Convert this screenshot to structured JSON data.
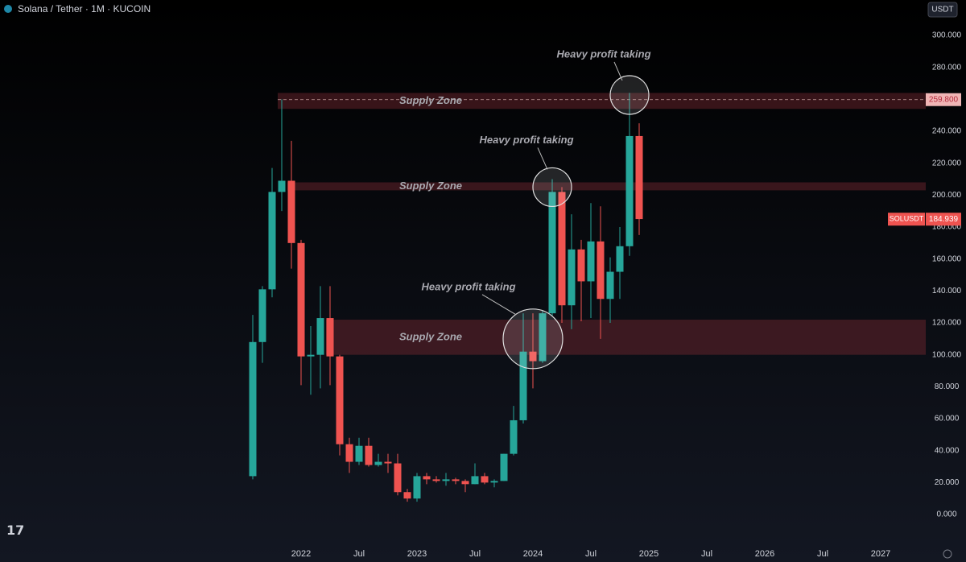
{
  "header": {
    "title": "Solana / Tether · 1M · KUCOIN",
    "currency": "USDT"
  },
  "chart_data": {
    "type": "candlestick",
    "x": [
      "2021-08",
      "2021-09",
      "2021-10",
      "2021-11",
      "2021-12",
      "2022-01",
      "2022-02",
      "2022-03",
      "2022-04",
      "2022-05",
      "2022-06",
      "2022-07",
      "2022-08",
      "2022-09",
      "2022-10",
      "2022-11",
      "2022-12",
      "2023-01",
      "2023-02",
      "2023-03",
      "2023-04",
      "2023-05",
      "2023-06",
      "2023-07",
      "2023-08",
      "2023-09",
      "2023-10",
      "2023-11",
      "2023-12",
      "2024-01",
      "2024-02",
      "2024-03",
      "2024-04",
      "2024-05",
      "2024-06",
      "2024-07",
      "2024-08",
      "2024-09",
      "2024-10",
      "2024-11",
      "2024-12"
    ],
    "open": [
      24,
      108,
      141,
      202,
      209,
      170,
      99,
      100,
      123,
      99,
      44,
      33,
      43,
      31,
      33,
      32,
      14,
      10,
      24,
      22,
      21,
      22,
      21,
      19,
      24,
      20,
      21,
      38,
      59,
      102,
      96,
      126,
      202,
      131,
      166,
      146,
      171,
      135,
      152,
      168,
      237
    ],
    "high": [
      125,
      143,
      217,
      260,
      234,
      172,
      118,
      143,
      143,
      100,
      48,
      48,
      48,
      38,
      38,
      38,
      16,
      26,
      26,
      24,
      26,
      23,
      22,
      32,
      26,
      22,
      38,
      68,
      126,
      126,
      128,
      210,
      205,
      188,
      172,
      195,
      193,
      161,
      180,
      264,
      245
    ],
    "low": [
      22,
      95,
      136,
      190,
      154,
      81,
      75,
      79,
      81,
      37,
      26,
      31,
      30,
      30,
      26,
      12,
      8,
      8,
      19,
      20,
      18,
      19,
      14,
      19,
      19,
      17,
      21,
      37,
      57,
      79,
      95,
      124,
      120,
      116,
      121,
      123,
      110,
      120,
      135,
      162,
      175
    ],
    "close": [
      108,
      141,
      202,
      209,
      170,
      99,
      100,
      123,
      99,
      44,
      33,
      43,
      31,
      33,
      32,
      14,
      10,
      24,
      22,
      21,
      22,
      21,
      19,
      24,
      20,
      21,
      38,
      59,
      102,
      96,
      126,
      202,
      131,
      166,
      146,
      171,
      135,
      152,
      168,
      237,
      185
    ],
    "up_color": "#26a69a",
    "down_color": "#ef5350",
    "ylim": [
      0,
      300
    ],
    "yticks": [
      {
        "value": 0,
        "label": "0.000"
      },
      {
        "value": 20,
        "label": "20.000"
      },
      {
        "value": 40,
        "label": "40.000"
      },
      {
        "value": 60,
        "label": "60.000"
      },
      {
        "value": 80,
        "label": "80.000"
      },
      {
        "value": 100,
        "label": "100.000"
      },
      {
        "value": 120,
        "label": "120.000"
      },
      {
        "value": 140,
        "label": "140.000"
      },
      {
        "value": 160,
        "label": "160.000"
      },
      {
        "value": 180,
        "label": "180.000"
      },
      {
        "value": 200,
        "label": "200.000"
      },
      {
        "value": 220,
        "label": "220.000"
      },
      {
        "value": 240,
        "label": "240.000"
      },
      {
        "value": 260,
        "label": "260.000"
      },
      {
        "value": 280,
        "label": "280.000"
      },
      {
        "value": 300,
        "label": "300.000"
      }
    ],
    "xticks": [
      {
        "value": "2022-01",
        "label": "2022"
      },
      {
        "value": "2022-07",
        "label": "Jul"
      },
      {
        "value": "2023-01",
        "label": "2023"
      },
      {
        "value": "2023-07",
        "label": "Jul"
      },
      {
        "value": "2024-01",
        "label": "2024"
      },
      {
        "value": "2024-07",
        "label": "Jul"
      },
      {
        "value": "2025-01",
        "label": "2025"
      },
      {
        "value": "2025-07",
        "label": "Jul"
      },
      {
        "value": "2026-01",
        "label": "2026"
      },
      {
        "value": "2026-07",
        "label": "Jul"
      },
      {
        "value": "2027-01",
        "label": "2027"
      }
    ],
    "zones": [
      {
        "label": "Supply Zone",
        "range": [
          254,
          264
        ],
        "start": "2021-11"
      },
      {
        "label": "Supply Zone",
        "range": [
          203,
          208
        ],
        "start": "2021-12"
      },
      {
        "label": "Supply Zone",
        "range": [
          100,
          122
        ],
        "start": "2022-04"
      }
    ],
    "high_line": {
      "value": 259.8,
      "label": "259.800"
    },
    "last_price": {
      "name": "SOLUSDT",
      "value": 184.939,
      "label": "184.939"
    },
    "annotations": [
      {
        "text": "Heavy profit taking",
        "x": "2024-01",
        "y": 110
      },
      {
        "text": "Heavy profit taking",
        "x": "2024-03",
        "y": 205
      },
      {
        "text": "Heavy profit taking",
        "x": "2024-11",
        "y": 262.7
      }
    ]
  }
}
